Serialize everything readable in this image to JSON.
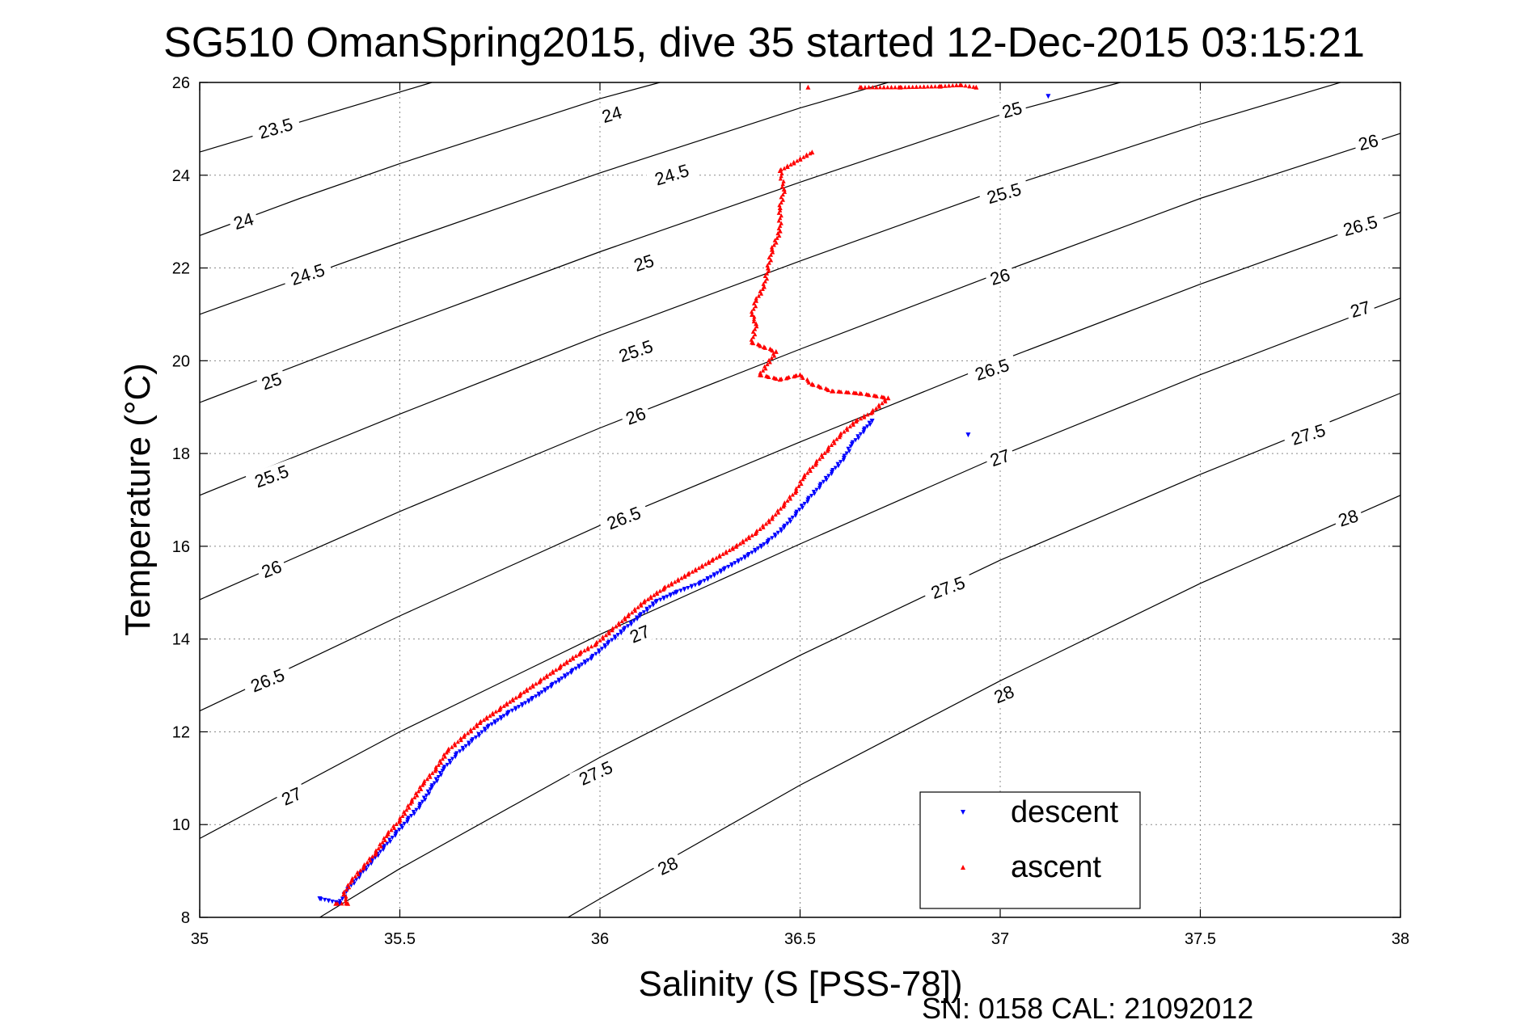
{
  "chart_data": {
    "type": "scatter",
    "title": "SG510 OmanSpring2015, dive 35 started 12-Dec-2015 03:15:21",
    "xlabel": "Salinity (S [PSS-78])",
    "ylabel": "Temperature (°C)",
    "xlim": [
      35,
      38
    ],
    "ylim": [
      8,
      26
    ],
    "xticks": [
      35,
      35.5,
      36,
      36.5,
      37,
      37.5,
      38
    ],
    "xtick_labels": [
      "35",
      "35.5",
      "36",
      "36.5",
      "37",
      "37.5",
      "38"
    ],
    "yticks": [
      8,
      10,
      12,
      14,
      16,
      18,
      20,
      22,
      24,
      26
    ],
    "ytick_labels": [
      "8",
      "10",
      "12",
      "14",
      "16",
      "18",
      "20",
      "22",
      "24",
      "26"
    ],
    "grid": true,
    "legend_position": "bottom-right",
    "footer": "SN: 0158  CAL: 21092012",
    "series": [
      {
        "name": "descent",
        "color": "#0000ff",
        "marker": "triangle-down",
        "points": [
          [
            35.3,
            8.4
          ],
          [
            35.35,
            8.3
          ],
          [
            35.37,
            8.6
          ],
          [
            35.4,
            8.9
          ],
          [
            35.43,
            9.2
          ],
          [
            35.46,
            9.5
          ],
          [
            35.49,
            9.8
          ],
          [
            35.52,
            10.1
          ],
          [
            35.55,
            10.4
          ],
          [
            35.58,
            10.8
          ],
          [
            35.61,
            11.2
          ],
          [
            35.64,
            11.5
          ],
          [
            35.68,
            11.8
          ],
          [
            35.72,
            12.1
          ],
          [
            35.77,
            12.4
          ],
          [
            35.83,
            12.7
          ],
          [
            35.88,
            13.0
          ],
          [
            35.93,
            13.3
          ],
          [
            35.98,
            13.6
          ],
          [
            36.02,
            13.9
          ],
          [
            36.06,
            14.2
          ],
          [
            36.1,
            14.5
          ],
          [
            36.14,
            14.8
          ],
          [
            36.19,
            15.0
          ],
          [
            36.25,
            15.2
          ],
          [
            36.31,
            15.5
          ],
          [
            36.37,
            15.8
          ],
          [
            36.42,
            16.1
          ],
          [
            36.46,
            16.4
          ],
          [
            36.49,
            16.7
          ],
          [
            36.52,
            17.0
          ],
          [
            36.55,
            17.3
          ],
          [
            36.58,
            17.6
          ],
          [
            36.61,
            17.9
          ],
          [
            36.63,
            18.2
          ],
          [
            36.66,
            18.5
          ],
          [
            36.68,
            18.7
          ],
          [
            36.92,
            18.4
          ],
          [
            37.12,
            25.7
          ]
        ]
      },
      {
        "name": "ascent",
        "color": "#ff0000",
        "marker": "triangle-up",
        "points": [
          [
            35.34,
            8.3
          ],
          [
            35.37,
            8.3
          ],
          [
            35.36,
            8.5
          ],
          [
            35.38,
            8.8
          ],
          [
            35.41,
            9.1
          ],
          [
            35.44,
            9.4
          ],
          [
            35.47,
            9.8
          ],
          [
            35.5,
            10.1
          ],
          [
            35.53,
            10.5
          ],
          [
            35.56,
            10.9
          ],
          [
            35.59,
            11.2
          ],
          [
            35.62,
            11.6
          ],
          [
            35.66,
            11.9
          ],
          [
            35.7,
            12.2
          ],
          [
            35.75,
            12.5
          ],
          [
            35.8,
            12.8
          ],
          [
            35.85,
            13.1
          ],
          [
            35.9,
            13.4
          ],
          [
            35.95,
            13.7
          ],
          [
            35.99,
            13.9
          ],
          [
            36.03,
            14.2
          ],
          [
            36.07,
            14.5
          ],
          [
            36.11,
            14.8
          ],
          [
            36.16,
            15.1
          ],
          [
            36.22,
            15.4
          ],
          [
            36.28,
            15.7
          ],
          [
            36.34,
            16.0
          ],
          [
            36.39,
            16.3
          ],
          [
            36.43,
            16.6
          ],
          [
            36.46,
            16.9
          ],
          [
            36.49,
            17.2
          ],
          [
            36.51,
            17.5
          ],
          [
            36.54,
            17.8
          ],
          [
            36.57,
            18.1
          ],
          [
            36.6,
            18.4
          ],
          [
            36.64,
            18.7
          ],
          [
            36.68,
            18.9
          ],
          [
            36.72,
            19.2
          ],
          [
            36.65,
            19.3
          ],
          [
            36.58,
            19.35
          ],
          [
            36.53,
            19.5
          ],
          [
            36.5,
            19.7
          ],
          [
            36.45,
            19.6
          ],
          [
            36.4,
            19.7
          ],
          [
            36.44,
            20.2
          ],
          [
            36.41,
            20.3
          ],
          [
            36.38,
            20.4
          ],
          [
            36.39,
            20.8
          ],
          [
            36.38,
            21.0
          ],
          [
            36.39,
            21.3
          ],
          [
            36.41,
            21.6
          ],
          [
            36.42,
            22.0
          ],
          [
            36.43,
            22.4
          ],
          [
            36.45,
            22.8
          ],
          [
            36.45,
            23.3
          ],
          [
            36.46,
            23.7
          ],
          [
            36.45,
            24.1
          ],
          [
            36.53,
            24.5
          ],
          [
            36.52,
            25.9
          ],
          [
            36.65,
            25.9
          ],
          [
            36.75,
            25.9
          ],
          [
            36.85,
            25.92
          ],
          [
            36.9,
            25.95
          ],
          [
            36.94,
            25.9
          ]
        ]
      }
    ],
    "density_contours": [
      {
        "level": 23.5,
        "label": "23.5",
        "points": [
          [
            35.0,
            24.5
          ],
          [
            35.58,
            26.0
          ]
        ]
      },
      {
        "level": 24.0,
        "label": "24",
        "points": [
          [
            35.0,
            22.7
          ],
          [
            35.25,
            23.5
          ],
          [
            35.5,
            24.25
          ],
          [
            35.75,
            24.95
          ],
          [
            36.0,
            25.65
          ],
          [
            36.15,
            26.0
          ]
        ]
      },
      {
        "level": 24.5,
        "label": "24.5",
        "points": [
          [
            35.0,
            21.0
          ],
          [
            35.5,
            22.55
          ],
          [
            36.0,
            24.05
          ],
          [
            36.5,
            25.45
          ],
          [
            36.72,
            26.0
          ]
        ]
      },
      {
        "level": 25.0,
        "label": "25",
        "points": [
          [
            35.0,
            19.1
          ],
          [
            35.5,
            20.75
          ],
          [
            36.0,
            22.35
          ],
          [
            36.5,
            23.85
          ],
          [
            37.0,
            25.3
          ],
          [
            37.3,
            26.0
          ]
        ]
      },
      {
        "level": 25.5,
        "label": "25.5",
        "points": [
          [
            35.0,
            17.1
          ],
          [
            35.5,
            18.85
          ],
          [
            36.0,
            20.55
          ],
          [
            36.5,
            22.15
          ],
          [
            37.0,
            23.7
          ],
          [
            37.5,
            25.1
          ],
          [
            37.85,
            26.0
          ]
        ]
      },
      {
        "level": 26.0,
        "label": "26",
        "points": [
          [
            35.0,
            14.85
          ],
          [
            35.5,
            16.75
          ],
          [
            36.0,
            18.55
          ],
          [
            36.5,
            20.25
          ],
          [
            37.0,
            21.9
          ],
          [
            37.5,
            23.5
          ],
          [
            38.0,
            24.9
          ]
        ]
      },
      {
        "level": 26.5,
        "label": "26.5",
        "points": [
          [
            35.0,
            12.45
          ],
          [
            35.5,
            14.5
          ],
          [
            36.0,
            16.45
          ],
          [
            36.5,
            18.25
          ],
          [
            37.0,
            20.0
          ],
          [
            37.5,
            21.65
          ],
          [
            38.0,
            23.2
          ]
        ]
      },
      {
        "level": 27.0,
        "label": "27",
        "points": [
          [
            35.0,
            9.7
          ],
          [
            35.5,
            12.0
          ],
          [
            36.0,
            14.1
          ],
          [
            36.5,
            16.05
          ],
          [
            37.0,
            17.95
          ],
          [
            37.5,
            19.7
          ],
          [
            38.0,
            21.35
          ]
        ]
      },
      {
        "level": 27.5,
        "label": "27.5",
        "points": [
          [
            35.3,
            8.0
          ],
          [
            35.5,
            9.05
          ],
          [
            36.0,
            11.45
          ],
          [
            36.5,
            13.65
          ],
          [
            37.0,
            15.7
          ],
          [
            37.5,
            17.55
          ],
          [
            38.0,
            19.3
          ]
        ]
      },
      {
        "level": 28.0,
        "label": "28",
        "points": [
          [
            35.92,
            8.0
          ],
          [
            36.0,
            8.4
          ],
          [
            36.5,
            10.85
          ],
          [
            37.0,
            13.1
          ],
          [
            37.5,
            15.2
          ],
          [
            38.0,
            17.1
          ]
        ]
      }
    ],
    "contour_labels": [
      {
        "text": "23.5",
        "x": 35.19,
        "y": 25.0,
        "angle": -16
      },
      {
        "text": "24",
        "x": 36.03,
        "y": 25.3,
        "angle": -16
      },
      {
        "text": "24",
        "x": 35.11,
        "y": 23.0,
        "angle": -17
      },
      {
        "text": "24.5",
        "x": 36.18,
        "y": 24.0,
        "angle": -17
      },
      {
        "text": "24.5",
        "x": 35.27,
        "y": 21.85,
        "angle": -18
      },
      {
        "text": "25",
        "x": 37.03,
        "y": 25.4,
        "angle": -15
      },
      {
        "text": "25",
        "x": 36.11,
        "y": 22.1,
        "angle": -18
      },
      {
        "text": "25",
        "x": 35.18,
        "y": 19.55,
        "angle": -19
      },
      {
        "text": "25.5",
        "x": 37.01,
        "y": 23.6,
        "angle": -16
      },
      {
        "text": "25.5",
        "x": 36.09,
        "y": 20.2,
        "angle": -19
      },
      {
        "text": "25.5",
        "x": 35.18,
        "y": 17.5,
        "angle": -20
      },
      {
        "text": "26",
        "x": 37.92,
        "y": 24.7,
        "angle": -14
      },
      {
        "text": "26",
        "x": 37.0,
        "y": 21.8,
        "angle": -17
      },
      {
        "text": "26",
        "x": 36.09,
        "y": 18.8,
        "angle": -20
      },
      {
        "text": "26",
        "x": 35.18,
        "y": 15.5,
        "angle": -21
      },
      {
        "text": "26.5",
        "x": 37.9,
        "y": 22.9,
        "angle": -15
      },
      {
        "text": "26.5",
        "x": 36.98,
        "y": 19.8,
        "angle": -18
      },
      {
        "text": "26.5",
        "x": 36.06,
        "y": 16.6,
        "angle": -21
      },
      {
        "text": "26.5",
        "x": 35.17,
        "y": 13.1,
        "angle": -22
      },
      {
        "text": "27",
        "x": 37.9,
        "y": 21.1,
        "angle": -16
      },
      {
        "text": "27",
        "x": 37.0,
        "y": 17.9,
        "angle": -19
      },
      {
        "text": "27",
        "x": 36.1,
        "y": 14.1,
        "angle": -22
      },
      {
        "text": "27",
        "x": 35.23,
        "y": 10.6,
        "angle": -24
      },
      {
        "text": "27.5",
        "x": 37.77,
        "y": 18.4,
        "angle": -17
      },
      {
        "text": "27.5",
        "x": 36.87,
        "y": 15.1,
        "angle": -20
      },
      {
        "text": "27.5",
        "x": 35.99,
        "y": 11.1,
        "angle": -24
      },
      {
        "text": "28",
        "x": 37.87,
        "y": 16.6,
        "angle": -18
      },
      {
        "text": "28",
        "x": 37.01,
        "y": 12.8,
        "angle": -22
      },
      {
        "text": "28",
        "x": 36.17,
        "y": 9.1,
        "angle": -25
      }
    ]
  }
}
